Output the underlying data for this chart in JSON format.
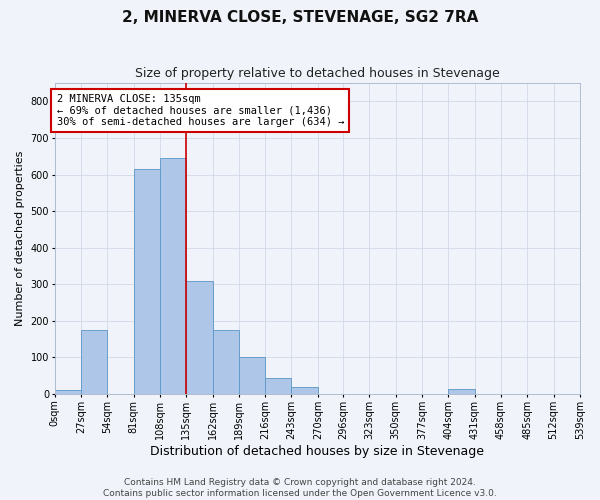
{
  "title": "2, MINERVA CLOSE, STEVENAGE, SG2 7RA",
  "subtitle": "Size of property relative to detached houses in Stevenage",
  "xlabel": "Distribution of detached houses by size in Stevenage",
  "ylabel": "Number of detached properties",
  "annotation_line1": "2 MINERVA CLOSE: 135sqm",
  "annotation_line2": "← 69% of detached houses are smaller (1,436)",
  "annotation_line3": "30% of semi-detached houses are larger (634) →",
  "property_size": 135,
  "bin_edges": [
    0,
    27,
    54,
    81,
    108,
    135,
    162,
    189,
    216,
    243,
    270,
    296,
    323,
    350,
    377,
    404,
    431,
    458,
    485,
    512,
    539
  ],
  "bar_heights": [
    10,
    175,
    0,
    615,
    645,
    310,
    175,
    100,
    45,
    20,
    0,
    0,
    0,
    0,
    0,
    15,
    0,
    0,
    0,
    0
  ],
  "bar_color": "#aec6e8",
  "bar_edge_color": "#5a96c8",
  "highlight_color": "#cc0000",
  "grid_color": "#d0d8e8",
  "background_color": "#f0f4fa",
  "ylim": [
    0,
    850
  ],
  "yticks": [
    0,
    100,
    200,
    300,
    400,
    500,
    600,
    700,
    800
  ],
  "footer_line1": "Contains HM Land Registry data © Crown copyright and database right 2024.",
  "footer_line2": "Contains public sector information licensed under the Open Government Licence v3.0.",
  "title_fontsize": 11,
  "subtitle_fontsize": 9,
  "xlabel_fontsize": 9,
  "ylabel_fontsize": 8,
  "tick_fontsize": 7,
  "footer_fontsize": 6.5,
  "ann_fontsize": 7.5
}
